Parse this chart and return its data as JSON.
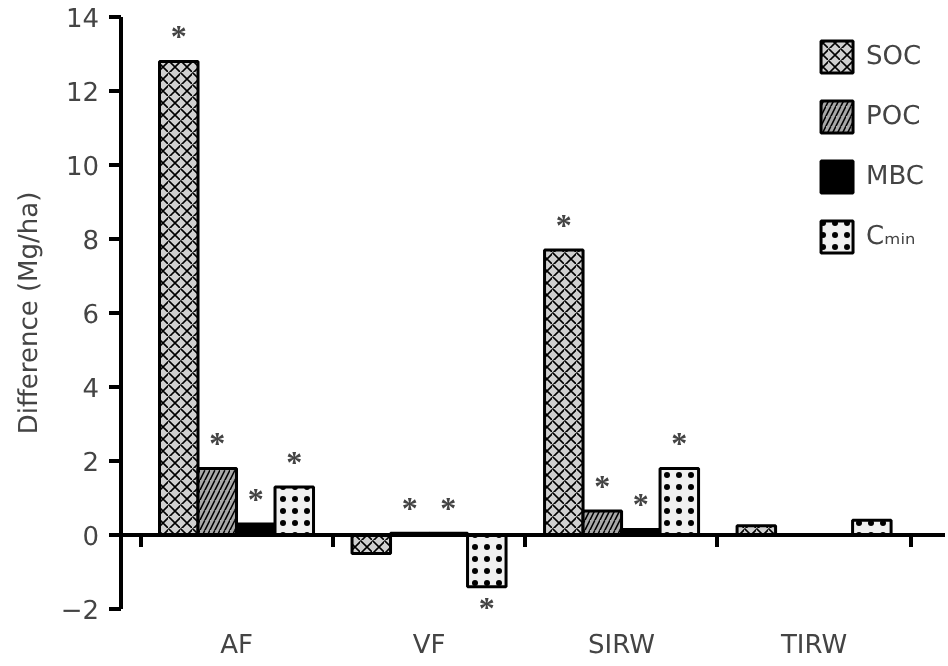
{
  "chart_data": {
    "type": "bar",
    "ylabel": "Difference (Mg/ha)",
    "categories": [
      "AF",
      "VF",
      "SIRW",
      "TIRW"
    ],
    "series": [
      {
        "name": "SOC",
        "color": "#d0d0d0",
        "values": [
          12.8,
          -0.5,
          7.7,
          0.25
        ],
        "value_labels": [
          "*",
          null,
          "*",
          null
        ]
      },
      {
        "name": "POC",
        "color": "#a8a8a8",
        "values": [
          1.8,
          0.05,
          0.65,
          null
        ],
        "value_labels": [
          "*",
          "*",
          "*",
          null
        ]
      },
      {
        "name": "MBC",
        "color": "#000000",
        "values": [
          0.3,
          0.05,
          0.15,
          null
        ],
        "value_labels": [
          "*",
          "*",
          "*",
          null
        ]
      },
      {
        "name": "Cₘᵢₙ",
        "color": "#f0f0f0",
        "values": [
          1.3,
          -1.4,
          1.8,
          0.4
        ],
        "value_labels": [
          "*",
          "*",
          "*",
          null
        ]
      }
    ],
    "ylim": [
      -2,
      14
    ],
    "yticks": [
      -2,
      0,
      2,
      4,
      6,
      8,
      10,
      12,
      14
    ],
    "ref_lines": [
      {
        "axis": "y",
        "value": 0
      }
    ],
    "grid": false,
    "legend": "top right"
  }
}
